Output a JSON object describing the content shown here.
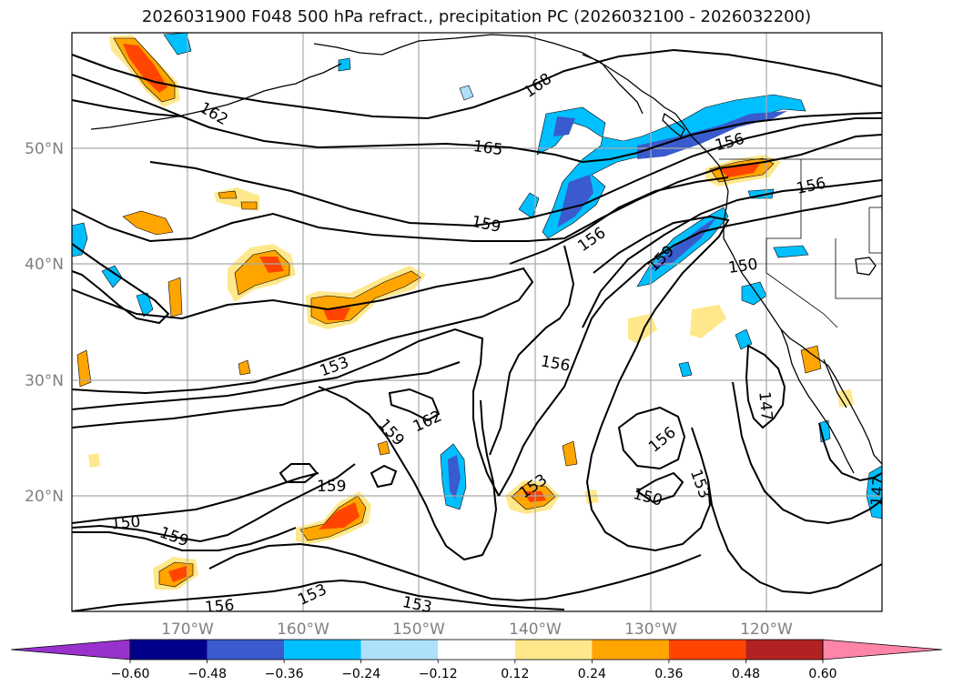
{
  "title": "2026031900 F048 500 hPa refract., precipitation PC (2026032100 - 2026032200)",
  "axes": {
    "lat_labels": [
      "50°N",
      "40°N",
      "30°N",
      "20°N"
    ],
    "lon_labels": [
      "170°W",
      "160°W",
      "150°W",
      "140°W",
      "130°W",
      "120°W"
    ]
  },
  "contour_labels": [
    "168",
    "162",
    "165",
    "159",
    "156",
    "159",
    "150",
    "153",
    "156",
    "162",
    "159",
    "153",
    "156",
    "150",
    "153",
    "159",
    "150",
    "159",
    "153",
    "153",
    "156",
    "147",
    "147",
    "156"
  ],
  "colorbar": {
    "ticks": [
      "−0.60",
      "−0.48",
      "−0.36",
      "−0.24",
      "−0.12",
      "0.12",
      "0.24",
      "0.36",
      "0.48",
      "0.60"
    ],
    "colors": [
      "#9932cc",
      "#00008b",
      "#3a5bcd",
      "#00bfff",
      "#aee0f9",
      "#ffffff",
      "#ffe88c",
      "#ffa500",
      "#ff4500",
      "#b22222",
      "#ff85a8"
    ]
  },
  "fill_colors": {
    "neg_strong": "#3a5bcd",
    "neg_mid": "#00bfff",
    "neg_light": "#aee0f9",
    "pos_light": "#ffe88c",
    "pos_mid": "#ffa500",
    "pos_strong": "#ff4500"
  }
}
